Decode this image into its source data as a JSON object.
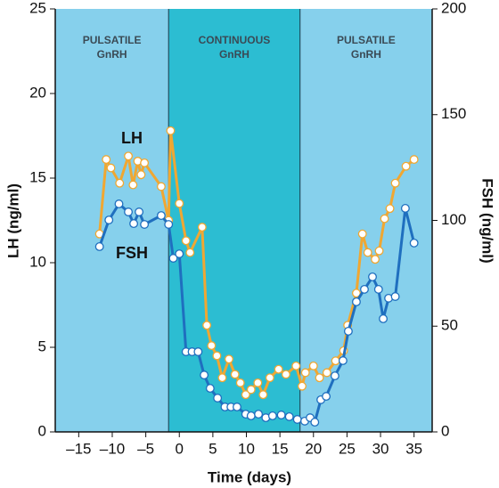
{
  "chart_data": {
    "type": "line",
    "xlabel": "Time (days)",
    "ylabel": "LH (ng/ml)",
    "y2label": "FSH (ng/ml)",
    "xlim": [
      -18.5,
      37.7
    ],
    "ylim": [
      0,
      25
    ],
    "y2lim": [
      0,
      200
    ],
    "xticks": [
      {
        "value": -15,
        "label": "–15"
      },
      {
        "value": -10,
        "label": "–10"
      },
      {
        "value": -5,
        "label": "–5"
      },
      0,
      5,
      10,
      15,
      20,
      25,
      30,
      35
    ],
    "yticks": [
      0,
      5,
      10,
      15,
      20,
      25
    ],
    "y2ticks": [
      0,
      50,
      100,
      150,
      200
    ],
    "phases": [
      {
        "lines": [
          "PULSATILE",
          "GnRH"
        ],
        "end": -1.6,
        "color": "#86d0ec"
      },
      {
        "lines": [
          "CONTINUOUS",
          "GnRH"
        ],
        "start": -1.6,
        "end": 18,
        "color": "#2cbdd2"
      },
      {
        "lines": [
          "PULSATILE",
          "GnRH"
        ],
        "start": 18,
        "color": "#86d0ec"
      }
    ],
    "series": [
      {
        "name": "LH",
        "color": "#f0a732",
        "x": [
          -11.9,
          -10.9,
          -10.2,
          -8.9,
          -7.6,
          -6.9,
          -6.2,
          -5.7,
          -5.2,
          -2.7,
          -1.6,
          -1.3,
          0,
          1.0,
          1.6,
          3.4,
          4.1,
          4.8,
          5.6,
          6.4,
          7.4,
          8.3,
          9.1,
          9.9,
          10.7,
          11.7,
          12.5,
          13.5,
          14.8,
          15.9,
          17.4,
          18.3,
          18.8,
          20.0,
          20.9,
          22.0,
          23.3,
          24.5,
          25.1,
          26.4,
          27.3,
          28.1,
          29.2,
          29.8,
          30.6,
          31.4,
          32.2,
          33.8,
          35.0
        ],
        "values": [
          11.7,
          16.1,
          15.6,
          14.7,
          16.3,
          14.6,
          16.0,
          15.2,
          15.9,
          14.5,
          12.5,
          17.8,
          13.5,
          11.3,
          10.6,
          12.1,
          6.3,
          5.1,
          4.5,
          3.2,
          4.3,
          3.4,
          2.9,
          2.2,
          2.5,
          2.9,
          2.2,
          3.2,
          3.7,
          3.4,
          3.9,
          2.7,
          3.5,
          3.9,
          3.2,
          3.5,
          4.2,
          4.8,
          6.3,
          8.2,
          11.7,
          10.6,
          10.2,
          10.7,
          12.6,
          13.2,
          14.7,
          15.7,
          16.1
        ]
      },
      {
        "name": "FSH",
        "color": "#1f6fbf",
        "axis": "y2",
        "x": [
          -11.9,
          -10.5,
          -9.0,
          -7.6,
          -6.8,
          -6.0,
          -5.2,
          -2.7,
          -1.6,
          -0.9,
          0,
          1.0,
          1.9,
          2.8,
          3.7,
          4.6,
          5.7,
          6.8,
          7.7,
          8.6,
          9.9,
          10.7,
          11.8,
          12.9,
          13.9,
          15.2,
          16.4,
          17.6,
          18.7,
          19.5,
          20.2,
          21.1,
          21.9,
          23.2,
          24.4,
          25.2,
          26.4,
          27.6,
          28.8,
          29.7,
          30.4,
          31.2,
          32.2,
          33.7,
          35.0
        ],
        "values": [
          87.6,
          100.2,
          107.8,
          104,
          98.5,
          104,
          98.1,
          102.3,
          98.1,
          82.1,
          84.2,
          37.9,
          37.9,
          37.9,
          26.9,
          20.6,
          16,
          11.8,
          11.8,
          11.8,
          8.4,
          7.6,
          8.4,
          6.7,
          7.6,
          8.0,
          7.2,
          5.9,
          5.1,
          6.7,
          4.6,
          15.2,
          16.8,
          26.5,
          33.7,
          47.6,
          61.5,
          67.4,
          73.3,
          67.4,
          53.5,
          63.2,
          64,
          105.7,
          89.3
        ]
      }
    ]
  }
}
